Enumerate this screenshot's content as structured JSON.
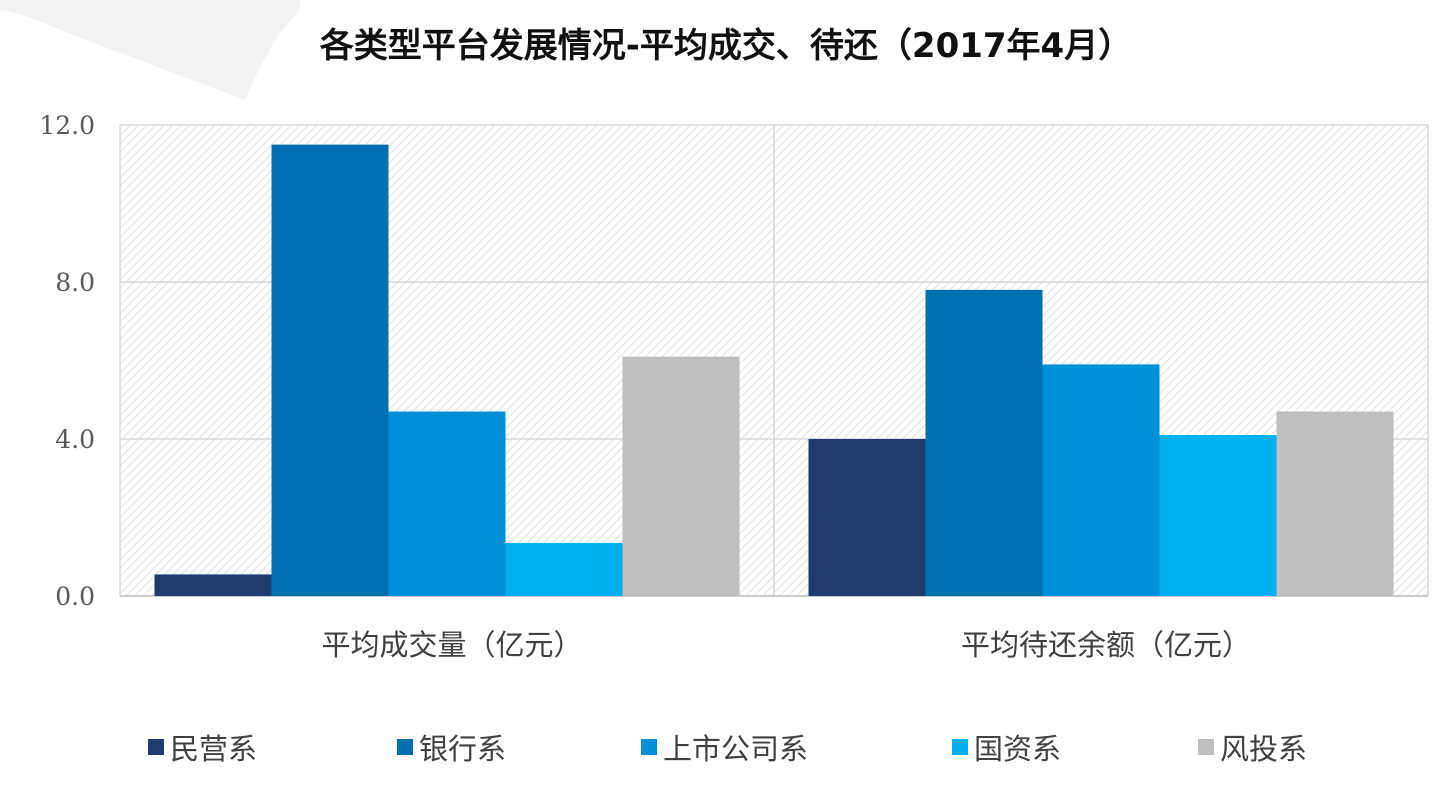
{
  "title": "各类型平台发展情况-平均成交、待还（2017年4月）",
  "chart_data": {
    "type": "bar",
    "title": "各类型平台发展情况-平均成交、待还（2017年4月）",
    "xlabel": "",
    "ylabel": "",
    "categories": [
      "平均成交量（亿元）",
      "平均待还余额（亿元）"
    ],
    "series": [
      {
        "name": "民营系",
        "values": [
          0.55,
          4.0
        ],
        "color": "#1F3C6E"
      },
      {
        "name": "银行系",
        "values": [
          11.5,
          7.8
        ],
        "color": "#0070B0"
      },
      {
        "name": "上市公司系",
        "values": [
          4.7,
          5.9
        ],
        "color": "#0090DA"
      },
      {
        "name": "国资系",
        "values": [
          1.35,
          4.1
        ],
        "color": "#00B0EE"
      },
      {
        "name": "风投系",
        "values": [
          6.1,
          4.7
        ],
        "color": "#BFBFBF"
      }
    ],
    "ylim": [
      0,
      12
    ],
    "yticks": [
      "0.0",
      "4.0",
      "8.0",
      "12.0"
    ],
    "grid": true,
    "legend_position": "bottom"
  }
}
